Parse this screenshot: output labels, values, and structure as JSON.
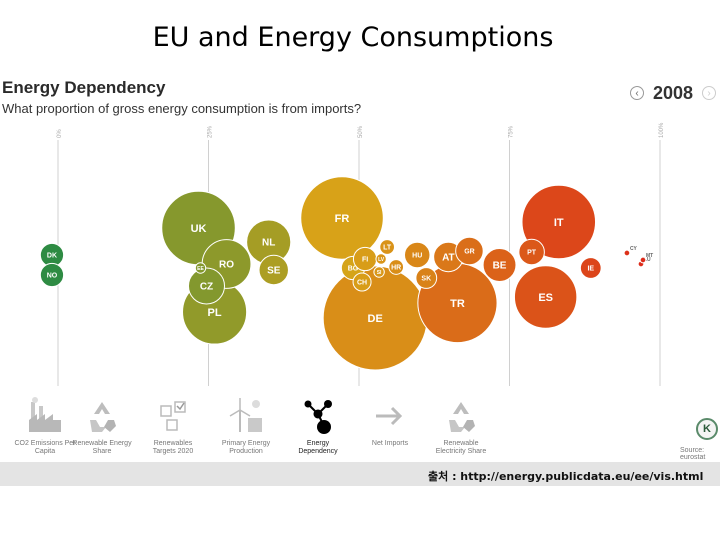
{
  "slide": {
    "title": "EU and Energy Consumptions"
  },
  "header": {
    "title": "Energy Dependency",
    "subtitle": "What proportion of gross energy consumption is from imports?",
    "year": "2008"
  },
  "chart_data": {
    "type": "scatter",
    "encoding": "packed bubbles positioned along x by import share",
    "title": "Energy Dependency",
    "subtitle": "What proportion of gross energy consumption is from imports?",
    "year": "2008",
    "xlim": [
      0,
      100
    ],
    "x_ticks": [
      {
        "value": 0,
        "label": "0%"
      },
      {
        "value": 25,
        "label": "25%"
      },
      {
        "value": 50,
        "label": "50%"
      },
      {
        "value": 75,
        "label": "75%"
      },
      {
        "value": 100,
        "label": "100%"
      }
    ],
    "color_scale": {
      "low": "#2e8b43",
      "mid": "#d8a418",
      "high": "#dd2a1a"
    },
    "points": [
      {
        "label": "DK",
        "x": -1,
        "size": 5
      },
      {
        "label": "NO",
        "x": -1,
        "size": 5
      },
      {
        "label": "UK",
        "x": 26,
        "size": 50
      },
      {
        "label": "EE",
        "x": 25,
        "size": 1
      },
      {
        "label": "NL",
        "x": 35,
        "size": 18
      },
      {
        "label": "RO",
        "x": 28,
        "size": 22
      },
      {
        "label": "SE",
        "x": 37,
        "size": 8
      },
      {
        "label": "CZ",
        "x": 25,
        "size": 12
      },
      {
        "label": "PL",
        "x": 29,
        "size": 38
      },
      {
        "label": "FR",
        "x": 51,
        "size": 63
      },
      {
        "label": "BG",
        "x": 49,
        "size": 5
      },
      {
        "label": "FI",
        "x": 53,
        "size": 5
      },
      {
        "label": "LT",
        "x": 57,
        "size": 2
      },
      {
        "label": "LV",
        "x": 56,
        "size": 1
      },
      {
        "label": "SI",
        "x": 55,
        "size": 1
      },
      {
        "label": "HR",
        "x": 59,
        "size": 2
      },
      {
        "label": "HU",
        "x": 62,
        "size": 6
      },
      {
        "label": "CH",
        "x": 53,
        "size": 3
      },
      {
        "label": "SK",
        "x": 64,
        "size": 4
      },
      {
        "label": "AT",
        "x": 68,
        "size": 8
      },
      {
        "label": "GR",
        "x": 72,
        "size": 7
      },
      {
        "label": "DE",
        "x": 59,
        "size": 100
      },
      {
        "label": "BE",
        "x": 77,
        "size": 10
      },
      {
        "label": "PT",
        "x": 81,
        "size": 6
      },
      {
        "label": "TR",
        "x": 73,
        "size": 58
      },
      {
        "label": "IT",
        "x": 88,
        "size": 50
      },
      {
        "label": "IE",
        "x": 89,
        "size": 4
      },
      {
        "label": "ES",
        "x": 83,
        "size": 36
      },
      {
        "label": "CY",
        "x": 97,
        "size": 0.3
      },
      {
        "label": "LU",
        "x": 99,
        "size": 0.3
      },
      {
        "label": "MT",
        "x": 100,
        "size": 0.3
      }
    ]
  },
  "nav": {
    "items": [
      {
        "key": "co2",
        "label1": "CO2 Emissions Per",
        "label2": "Capita",
        "icon": "factory-icon"
      },
      {
        "key": "renewable",
        "label1": "Renewable Energy",
        "label2": "Share",
        "icon": "recycle-icon"
      },
      {
        "key": "targets",
        "label1": "Renewables",
        "label2": "Targets 2020",
        "icon": "checklist-icon"
      },
      {
        "key": "primary",
        "label1": "Primary Energy",
        "label2": "Production",
        "icon": "wind-turbine-icon"
      },
      {
        "key": "dependency",
        "label1": "Energy",
        "label2": "Dependency",
        "icon": "network-icon",
        "active": true
      },
      {
        "key": "imports",
        "label1": "Net Imports",
        "label2": "",
        "icon": "arrow-icon"
      },
      {
        "key": "electricity",
        "label1": "Renewable",
        "label2": "Electricity Share",
        "icon": "recycle-icon"
      }
    ],
    "source_label": "Source: eurostat"
  },
  "footer": {
    "source_caption": "출처 : http://energy.publicdata.eu/ee/vis.html"
  }
}
